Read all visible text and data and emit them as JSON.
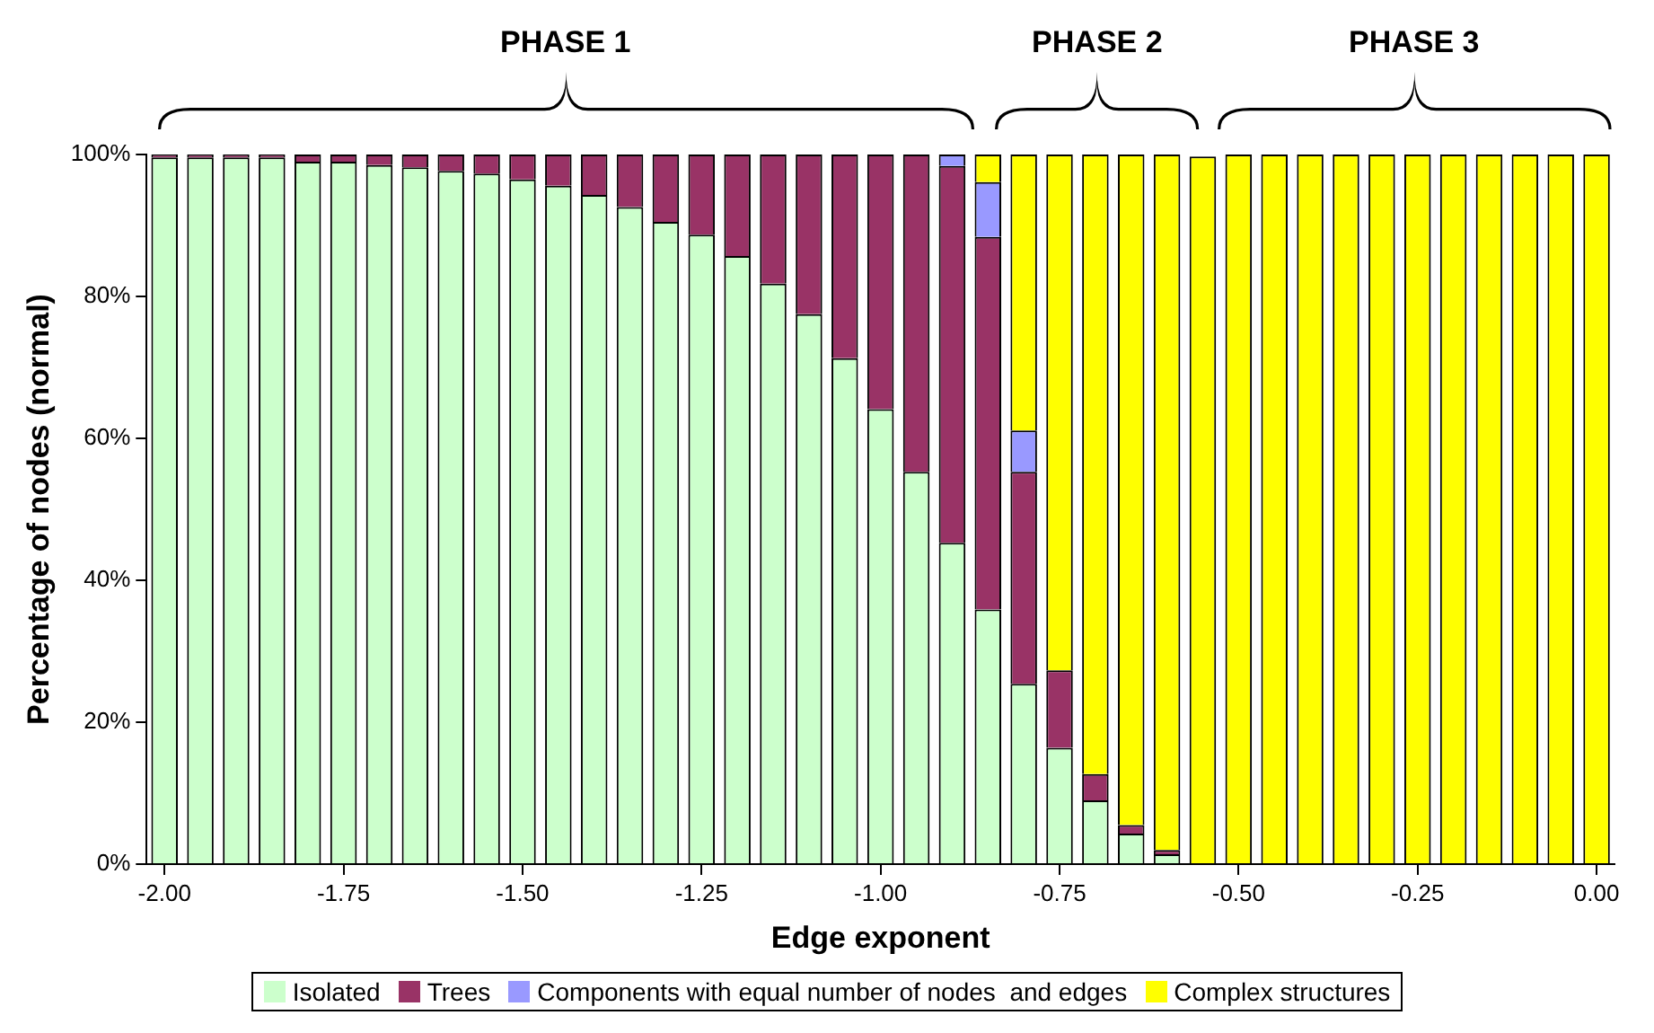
{
  "chart_data": {
    "type": "bar",
    "stacked": true,
    "xlabel": "Edge exponent",
    "ylabel": "Percentage of nodes (normal)",
    "categories": [
      "-2.00",
      null,
      null,
      null,
      null,
      "-1.75",
      null,
      null,
      null,
      null,
      "-1.50",
      null,
      null,
      null,
      null,
      "-1.25",
      null,
      null,
      null,
      null,
      "-1.00",
      null,
      null,
      null,
      null,
      "-0.75",
      null,
      null,
      null,
      null,
      "-0.50",
      null,
      null,
      null,
      null,
      "-0.25",
      null,
      null,
      null,
      null,
      "0.00"
    ],
    "series": [
      {
        "name": "Isolated",
        "color": "#ccffcc",
        "values": [
          99.6,
          99.6,
          99.6,
          99.6,
          99.0,
          99.0,
          98.5,
          98.2,
          97.7,
          97.3,
          96.5,
          95.6,
          94.3,
          92.6,
          90.5,
          88.7,
          85.7,
          81.8,
          77.5,
          71.3,
          64.1,
          55.3,
          45.3,
          35.9,
          25.4,
          16.4,
          9.0,
          4.3,
          1.4,
          null,
          0,
          0,
          0,
          0,
          0,
          0,
          0,
          0,
          0,
          0,
          0
        ]
      },
      {
        "name": "Trees",
        "color": "#993366",
        "values": [
          0.4,
          0.4,
          0.4,
          0.4,
          1.0,
          1.0,
          1.5,
          1.8,
          2.3,
          2.7,
          3.5,
          4.4,
          5.7,
          7.4,
          9.5,
          11.3,
          14.3,
          18.2,
          22.5,
          28.7,
          35.9,
          44.7,
          53.1,
          52.5,
          29.9,
          10.9,
          3.7,
          1.2,
          0.6,
          0,
          0,
          0,
          0,
          0,
          0,
          0,
          0,
          0,
          0,
          0,
          0
        ]
      },
      {
        "name": "Components with equal number of nodes  and edges",
        "color": "#9999ff",
        "values": [
          0,
          0,
          0,
          0,
          0,
          0,
          0,
          0,
          0,
          0,
          0,
          0,
          0,
          0,
          0,
          0,
          0,
          0,
          0,
          0,
          0,
          0,
          1.6,
          7.7,
          5.8,
          0,
          0,
          0,
          0,
          0,
          0,
          0,
          0,
          0,
          0,
          0,
          0,
          0,
          0,
          0,
          0
        ]
      },
      {
        "name": "Complex structures",
        "color": "#ffff00",
        "values": [
          0,
          0,
          0,
          0,
          0,
          0,
          0,
          0,
          0,
          0,
          0,
          0,
          0,
          0,
          0,
          0,
          0,
          0,
          0,
          0,
          0,
          0,
          0,
          3.9,
          38.9,
          72.7,
          87.3,
          94.5,
          98.0,
          99.7,
          100,
          100,
          100,
          100,
          100,
          100,
          100,
          100,
          100,
          100,
          100
        ]
      }
    ],
    "ylim": [
      0,
      100
    ],
    "yticks": [
      {
        "value": 0,
        "label": "0%"
      },
      {
        "value": 20,
        "label": "20%"
      },
      {
        "value": 40,
        "label": "40%"
      },
      {
        "value": 60,
        "label": "60%"
      },
      {
        "value": 80,
        "label": "80%"
      },
      {
        "value": 100,
        "label": "100%"
      }
    ],
    "legend": "bottom",
    "annotations": [
      "PHASE 1",
      "PHASE 2",
      "PHASE 3"
    ]
  }
}
